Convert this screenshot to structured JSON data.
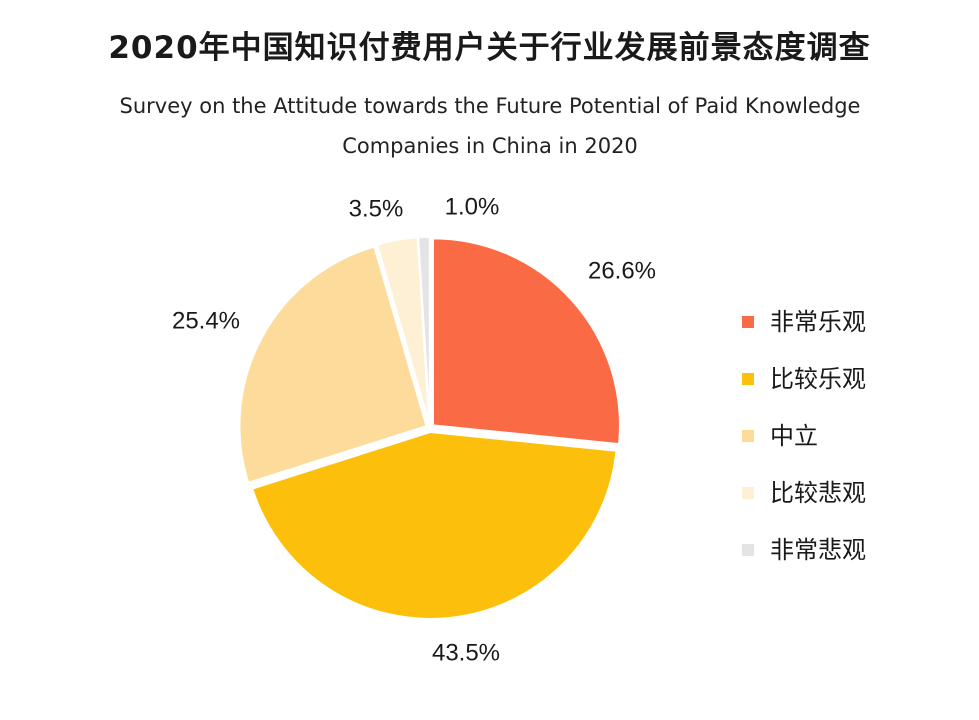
{
  "title": "2020年中国知识付费用户关于行业发展前景态度调查",
  "subtitle": "Survey on the Attitude towards the Future Potential of Paid Knowledge Companies in China in 2020",
  "chart_data": {
    "type": "pie",
    "title": "2020年中国知识付费用户关于行业发展前景态度调查",
    "subtitle": "Survey on the Attitude towards the Future Potential of Paid Knowledge Companies in China in 2020",
    "unit": "%",
    "legend_position": "right",
    "slices": [
      {
        "label": "非常乐观",
        "value": 26.6,
        "value_label": "26.6%",
        "color": "#F96A45"
      },
      {
        "label": "比较乐观",
        "value": 43.5,
        "value_label": "43.5%",
        "color": "#FCC00C"
      },
      {
        "label": "中立",
        "value": 25.4,
        "value_label": "25.4%",
        "color": "#FDDC9B"
      },
      {
        "label": "比较悲观",
        "value": 3.5,
        "value_label": "3.5%",
        "color": "#FDF0D4"
      },
      {
        "label": "非常悲观",
        "value": 1.0,
        "value_label": "1.0%",
        "color": "#E4E4E6"
      }
    ]
  }
}
